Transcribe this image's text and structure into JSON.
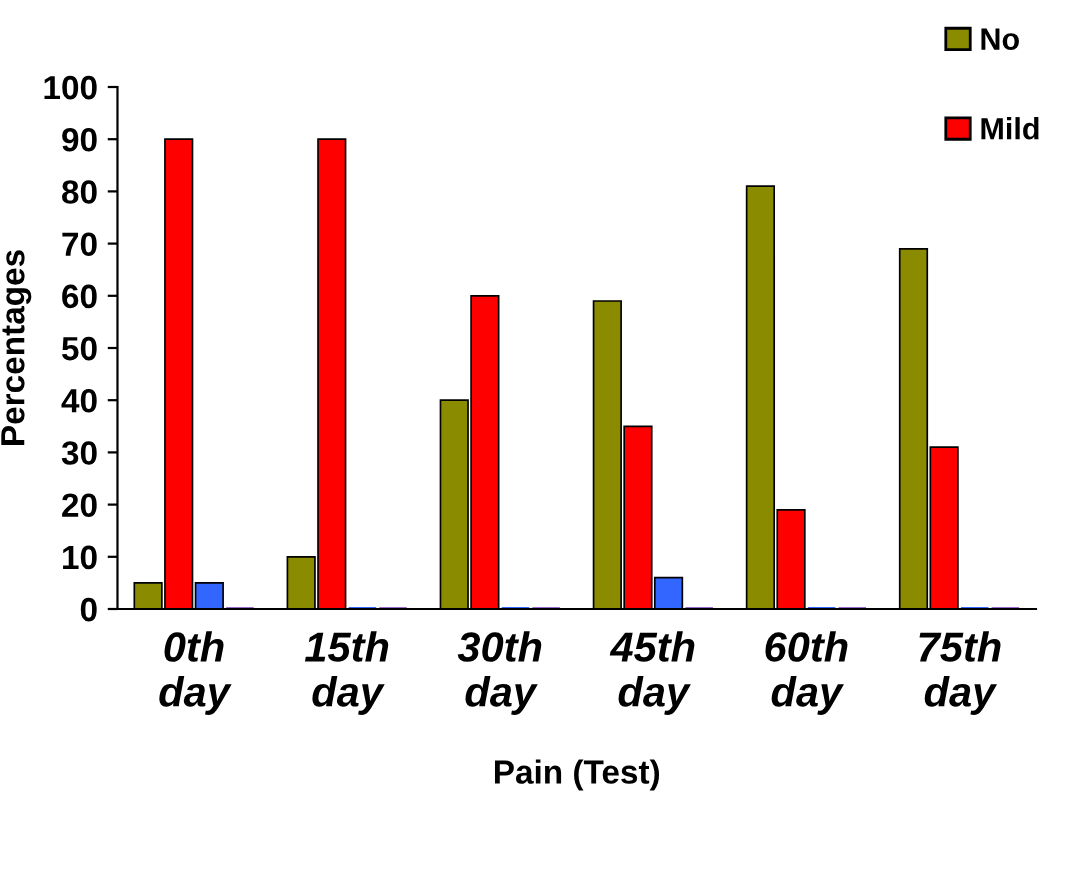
{
  "chart_data": {
    "type": "bar",
    "xlabel": "Pain (Test)",
    "ylabel": "Percentages",
    "categories": [
      "0th day",
      "15th day",
      "30th day",
      "45th day",
      "60th day",
      "75th day"
    ],
    "series": [
      {
        "name": "No",
        "color": "#8b8b00",
        "values": [
          5,
          10,
          40,
          59,
          81,
          69
        ]
      },
      {
        "name": "Mild",
        "color": "#ff0000",
        "values": [
          90,
          90,
          60,
          35,
          19,
          31
        ]
      },
      {
        "color": "#3366ff",
        "values": [
          5,
          0,
          0,
          6,
          0,
          0
        ]
      },
      {
        "color": "#9966cc",
        "values": [
          0,
          0,
          0,
          0,
          0,
          0
        ]
      }
    ],
    "ylim": [
      0,
      100
    ],
    "yticks": [
      0,
      10,
      20,
      30,
      40,
      50,
      60,
      70,
      80,
      90,
      100
    ],
    "grid": false,
    "legend": "top right"
  }
}
